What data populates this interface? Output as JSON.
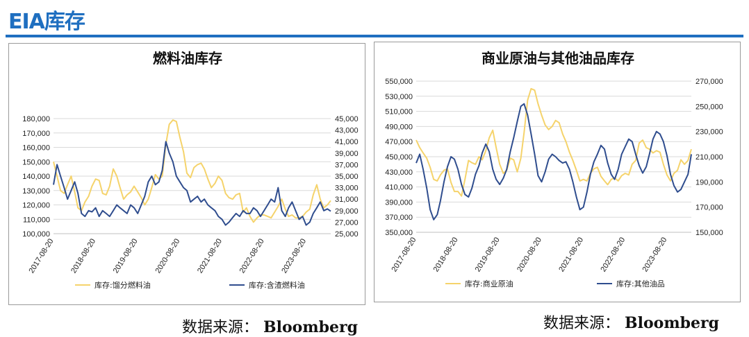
{
  "page": {
    "title": "EIA库存",
    "colors": {
      "title": "#1f6fc0",
      "series_light": "#f5d36b",
      "series_dark": "#2f4d8e"
    }
  },
  "sources": [
    {
      "label": "数据来源：",
      "name": "Bloomberg"
    },
    {
      "label": "数据来源：",
      "name": "Bloomberg"
    }
  ],
  "chart_data": [
    {
      "type": "line",
      "title": "燃料油库存",
      "x_ticks": [
        "2017-08-20",
        "2018-08-20",
        "2019-08-20",
        "2020-08-20",
        "2021-08-20",
        "2022-08-20",
        "2023-08-20"
      ],
      "y_left": {
        "ticks": [
          "100,000",
          "110,000",
          "120,000",
          "130,000",
          "140,000",
          "150,000",
          "160,000",
          "170,000",
          "180,000"
        ],
        "range": [
          100000,
          180000
        ]
      },
      "y_right": {
        "ticks": [
          "25,000",
          "27,000",
          "29,000",
          "31,000",
          "33,000",
          "35,000",
          "37,000",
          "39,000",
          "41,000",
          "43,000",
          "45,000"
        ],
        "range": [
          25000,
          45000
        ]
      },
      "grid": true,
      "legend_position": "bottom",
      "series": [
        {
          "name": "库存:馏分燃料油",
          "axis": "left",
          "color": "#f5d36b",
          "x": [
            "2017-08-20",
            "2017-09-20",
            "2017-10-20",
            "2017-11-20",
            "2017-12-20",
            "2018-01-20",
            "2018-02-20",
            "2018-03-20",
            "2018-04-20",
            "2018-05-20",
            "2018-06-20",
            "2018-07-20",
            "2018-08-20",
            "2018-09-20",
            "2018-10-20",
            "2018-11-20",
            "2018-12-20",
            "2019-01-20",
            "2019-02-20",
            "2019-03-20",
            "2019-04-20",
            "2019-05-20",
            "2019-06-20",
            "2019-07-20",
            "2019-08-20",
            "2019-09-20",
            "2019-10-20",
            "2019-11-20",
            "2019-12-20",
            "2020-01-20",
            "2020-02-20",
            "2020-03-20",
            "2020-04-20",
            "2020-05-20",
            "2020-06-20",
            "2020-07-20",
            "2020-08-20",
            "2020-09-20",
            "2020-10-20",
            "2020-11-20",
            "2020-12-20",
            "2021-01-20",
            "2021-02-20",
            "2021-03-20",
            "2021-04-20",
            "2021-05-20",
            "2021-06-20",
            "2021-07-20",
            "2021-08-20",
            "2021-09-20",
            "2021-10-20",
            "2021-11-20",
            "2021-12-20",
            "2022-01-20",
            "2022-02-20",
            "2022-03-20",
            "2022-04-20",
            "2022-05-20",
            "2022-06-20",
            "2022-07-20",
            "2022-08-20",
            "2022-09-20",
            "2022-10-20",
            "2022-11-20",
            "2022-12-20",
            "2023-01-20",
            "2023-02-20",
            "2023-03-20",
            "2023-04-20",
            "2023-05-20",
            "2023-06-20",
            "2023-07-20",
            "2023-08-20",
            "2023-09-20",
            "2023-10-20",
            "2023-11-20",
            "2023-12-20",
            "2024-01-20",
            "2024-02-20",
            "2024-03-20"
          ],
          "y": [
            150000,
            140000,
            130000,
            128000,
            134000,
            140000,
            129000,
            118000,
            116000,
            122000,
            126000,
            133000,
            138000,
            137000,
            128000,
            127000,
            133000,
            145000,
            140000,
            132000,
            124000,
            127000,
            129000,
            133000,
            129000,
            125000,
            120000,
            124000,
            132000,
            141000,
            138000,
            140000,
            162000,
            176000,
            179000,
            178000,
            167000,
            157000,
            142000,
            139000,
            146000,
            148000,
            149000,
            145000,
            138000,
            132000,
            135000,
            140000,
            137000,
            128000,
            125000,
            124000,
            127000,
            128000,
            115000,
            118000,
            112000,
            108000,
            111000,
            113000,
            113000,
            112000,
            111000,
            115000,
            119000,
            124000,
            117000,
            112000,
            113000,
            111000,
            111000,
            112000,
            115000,
            117000,
            127000,
            134000,
            124000,
            118000,
            120000,
            123000
          ]
        },
        {
          "name": "库存:含渣燃料油",
          "axis": "right",
          "color": "#2f4d8e",
          "x": [
            "2017-08-20",
            "2017-09-20",
            "2017-10-20",
            "2017-11-20",
            "2017-12-20",
            "2018-01-20",
            "2018-02-20",
            "2018-03-20",
            "2018-04-20",
            "2018-05-20",
            "2018-06-20",
            "2018-07-20",
            "2018-08-20",
            "2018-09-20",
            "2018-10-20",
            "2018-11-20",
            "2018-12-20",
            "2019-01-20",
            "2019-02-20",
            "2019-03-20",
            "2019-04-20",
            "2019-05-20",
            "2019-06-20",
            "2019-07-20",
            "2019-08-20",
            "2019-09-20",
            "2019-10-20",
            "2019-11-20",
            "2019-12-20",
            "2020-01-20",
            "2020-02-20",
            "2020-03-20",
            "2020-04-20",
            "2020-05-20",
            "2020-06-20",
            "2020-07-20",
            "2020-08-20",
            "2020-09-20",
            "2020-10-20",
            "2020-11-20",
            "2020-12-20",
            "2021-01-20",
            "2021-02-20",
            "2021-03-20",
            "2021-04-20",
            "2021-05-20",
            "2021-06-20",
            "2021-07-20",
            "2021-08-20",
            "2021-09-20",
            "2021-10-20",
            "2021-11-20",
            "2021-12-20",
            "2022-01-20",
            "2022-02-20",
            "2022-03-20",
            "2022-04-20",
            "2022-05-20",
            "2022-06-20",
            "2022-07-20",
            "2022-08-20",
            "2022-09-20",
            "2022-10-20",
            "2022-11-20",
            "2022-12-20",
            "2023-01-20",
            "2023-02-20",
            "2023-03-20",
            "2023-04-20",
            "2023-05-20",
            "2023-06-20",
            "2023-07-20",
            "2023-08-20",
            "2023-09-20",
            "2023-10-20",
            "2023-11-20",
            "2023-12-20",
            "2024-01-20",
            "2024-02-20",
            "2024-03-20"
          ],
          "y": [
            33500,
            37000,
            35000,
            33000,
            31000,
            32500,
            34000,
            32000,
            28500,
            28000,
            29000,
            28800,
            29500,
            28000,
            29000,
            28500,
            28000,
            29000,
            30000,
            29500,
            29000,
            28500,
            30000,
            29500,
            28500,
            30000,
            31500,
            34000,
            35000,
            33500,
            34000,
            36000,
            41000,
            39000,
            37500,
            35000,
            34000,
            33000,
            32500,
            30500,
            31000,
            31500,
            30500,
            31000,
            30000,
            29500,
            29000,
            28000,
            27500,
            26500,
            27000,
            27800,
            28500,
            28000,
            29000,
            28500,
            28500,
            29500,
            29000,
            28000,
            29000,
            30000,
            31000,
            30500,
            33000,
            29000,
            28000,
            29500,
            30500,
            29000,
            27500,
            28000,
            26500,
            27000,
            28500,
            29500,
            30500,
            29000,
            29300,
            28900
          ]
        }
      ]
    },
    {
      "type": "line",
      "title": "商业原油与其他油品库存",
      "x_ticks": [
        "2017-08-20",
        "2018-08-20",
        "2019-08-20",
        "2020-08-20",
        "2021-08-20",
        "2022-08-20",
        "2023-08-20"
      ],
      "y_left": {
        "ticks": [
          "350,000",
          "370,000",
          "390,000",
          "410,000",
          "430,000",
          "450,000",
          "470,000",
          "490,000",
          "510,000",
          "530,000",
          "550,000"
        ],
        "range": [
          350000,
          550000
        ]
      },
      "y_right": {
        "ticks": [
          "150,000",
          "170,000",
          "190,000",
          "210,000",
          "230,000",
          "250,000",
          "270,000"
        ],
        "range": [
          150000,
          270000
        ]
      },
      "grid": true,
      "legend_position": "bottom",
      "series": [
        {
          "name": "库存:商业原油",
          "axis": "left",
          "color": "#f5d36b",
          "x": [
            "2017-08-20",
            "2017-09-20",
            "2017-10-20",
            "2017-11-20",
            "2017-12-20",
            "2018-01-20",
            "2018-02-20",
            "2018-03-20",
            "2018-04-20",
            "2018-05-20",
            "2018-06-20",
            "2018-07-20",
            "2018-08-20",
            "2018-09-20",
            "2018-10-20",
            "2018-11-20",
            "2018-12-20",
            "2019-01-20",
            "2019-02-20",
            "2019-03-20",
            "2019-04-20",
            "2019-05-20",
            "2019-06-20",
            "2019-07-20",
            "2019-08-20",
            "2019-09-20",
            "2019-10-20",
            "2019-11-20",
            "2019-12-20",
            "2020-01-20",
            "2020-02-20",
            "2020-03-20",
            "2020-04-20",
            "2020-05-20",
            "2020-06-20",
            "2020-07-20",
            "2020-08-20",
            "2020-09-20",
            "2020-10-20",
            "2020-11-20",
            "2020-12-20",
            "2021-01-20",
            "2021-02-20",
            "2021-03-20",
            "2021-04-20",
            "2021-05-20",
            "2021-06-20",
            "2021-07-20",
            "2021-08-20",
            "2021-09-20",
            "2021-10-20",
            "2021-11-20",
            "2021-12-20",
            "2022-01-20",
            "2022-02-20",
            "2022-03-20",
            "2022-04-20",
            "2022-05-20",
            "2022-06-20",
            "2022-07-20",
            "2022-08-20",
            "2022-09-20",
            "2022-10-20",
            "2022-11-20",
            "2022-12-20",
            "2023-01-20",
            "2023-02-20",
            "2023-03-20",
            "2023-04-20",
            "2023-05-20",
            "2023-06-20",
            "2023-07-20",
            "2023-08-20",
            "2023-09-20",
            "2023-10-20",
            "2023-11-20",
            "2023-12-20",
            "2024-01-20",
            "2024-02-20",
            "2024-03-20"
          ],
          "y": [
            472000,
            462000,
            455000,
            448000,
            436000,
            420000,
            418000,
            426000,
            432000,
            434000,
            416000,
            404000,
            404000,
            398000,
            420000,
            445000,
            442000,
            440000,
            450000,
            446000,
            458000,
            475000,
            485000,
            462000,
            440000,
            428000,
            432000,
            448000,
            446000,
            430000,
            448000,
            482000,
            525000,
            540000,
            538000,
            520000,
            505000,
            492000,
            486000,
            490000,
            498000,
            495000,
            480000,
            470000,
            456000,
            445000,
            432000,
            418000,
            420000,
            418000,
            428000,
            434000,
            436000,
            424000,
            418000,
            413000,
            420000,
            422000,
            418000,
            425000,
            428000,
            426000,
            440000,
            445000,
            468000,
            472000,
            462000,
            460000,
            455000,
            458000,
            456000,
            440000,
            426000,
            418000,
            428000,
            432000,
            446000,
            440000,
            445000,
            460000
          ]
        },
        {
          "name": "库存:其他油品",
          "axis": "right",
          "color": "#2f4d8e",
          "x": [
            "2017-08-20",
            "2017-09-20",
            "2017-10-20",
            "2017-11-20",
            "2017-12-20",
            "2018-01-20",
            "2018-02-20",
            "2018-03-20",
            "2018-04-20",
            "2018-05-20",
            "2018-06-20",
            "2018-07-20",
            "2018-08-20",
            "2018-09-20",
            "2018-10-20",
            "2018-11-20",
            "2018-12-20",
            "2019-01-20",
            "2019-02-20",
            "2019-03-20",
            "2019-04-20",
            "2019-05-20",
            "2019-06-20",
            "2019-07-20",
            "2019-08-20",
            "2019-09-20",
            "2019-10-20",
            "2019-11-20",
            "2019-12-20",
            "2020-01-20",
            "2020-02-20",
            "2020-03-20",
            "2020-04-20",
            "2020-05-20",
            "2020-06-20",
            "2020-07-20",
            "2020-08-20",
            "2020-09-20",
            "2020-10-20",
            "2020-11-20",
            "2020-12-20",
            "2021-01-20",
            "2021-02-20",
            "2021-03-20",
            "2021-04-20",
            "2021-05-20",
            "2021-06-20",
            "2021-07-20",
            "2021-08-20",
            "2021-09-20",
            "2021-10-20",
            "2021-11-20",
            "2021-12-20",
            "2022-01-20",
            "2022-02-20",
            "2022-03-20",
            "2022-04-20",
            "2022-05-20",
            "2022-06-20",
            "2022-07-20",
            "2022-08-20",
            "2022-09-20",
            "2022-10-20",
            "2022-11-20",
            "2022-12-20",
            "2023-01-20",
            "2023-02-20",
            "2023-03-20",
            "2023-04-20",
            "2023-05-20",
            "2023-06-20",
            "2023-07-20",
            "2023-08-20",
            "2023-09-20",
            "2023-10-20",
            "2023-11-20",
            "2023-12-20",
            "2024-01-20",
            "2024-02-20",
            "2024-03-20"
          ],
          "y": [
            205000,
            212000,
            200000,
            185000,
            168000,
            160000,
            164000,
            175000,
            190000,
            202000,
            210000,
            208000,
            200000,
            188000,
            180000,
            178000,
            185000,
            196000,
            203000,
            213000,
            220000,
            214000,
            200000,
            192000,
            188000,
            193000,
            200000,
            214000,
            225000,
            238000,
            250000,
            252000,
            243000,
            228000,
            212000,
            195000,
            190000,
            198000,
            208000,
            212000,
            210000,
            207000,
            205000,
            206000,
            200000,
            190000,
            178000,
            168000,
            170000,
            182000,
            196000,
            206000,
            212000,
            219000,
            216000,
            205000,
            196000,
            192000,
            200000,
            212000,
            218000,
            224000,
            222000,
            212000,
            203000,
            197000,
            202000,
            212000,
            224000,
            230000,
            228000,
            222000,
            211000,
            196000,
            187000,
            182000,
            184000,
            190000,
            196000,
            212000
          ]
        }
      ]
    }
  ]
}
